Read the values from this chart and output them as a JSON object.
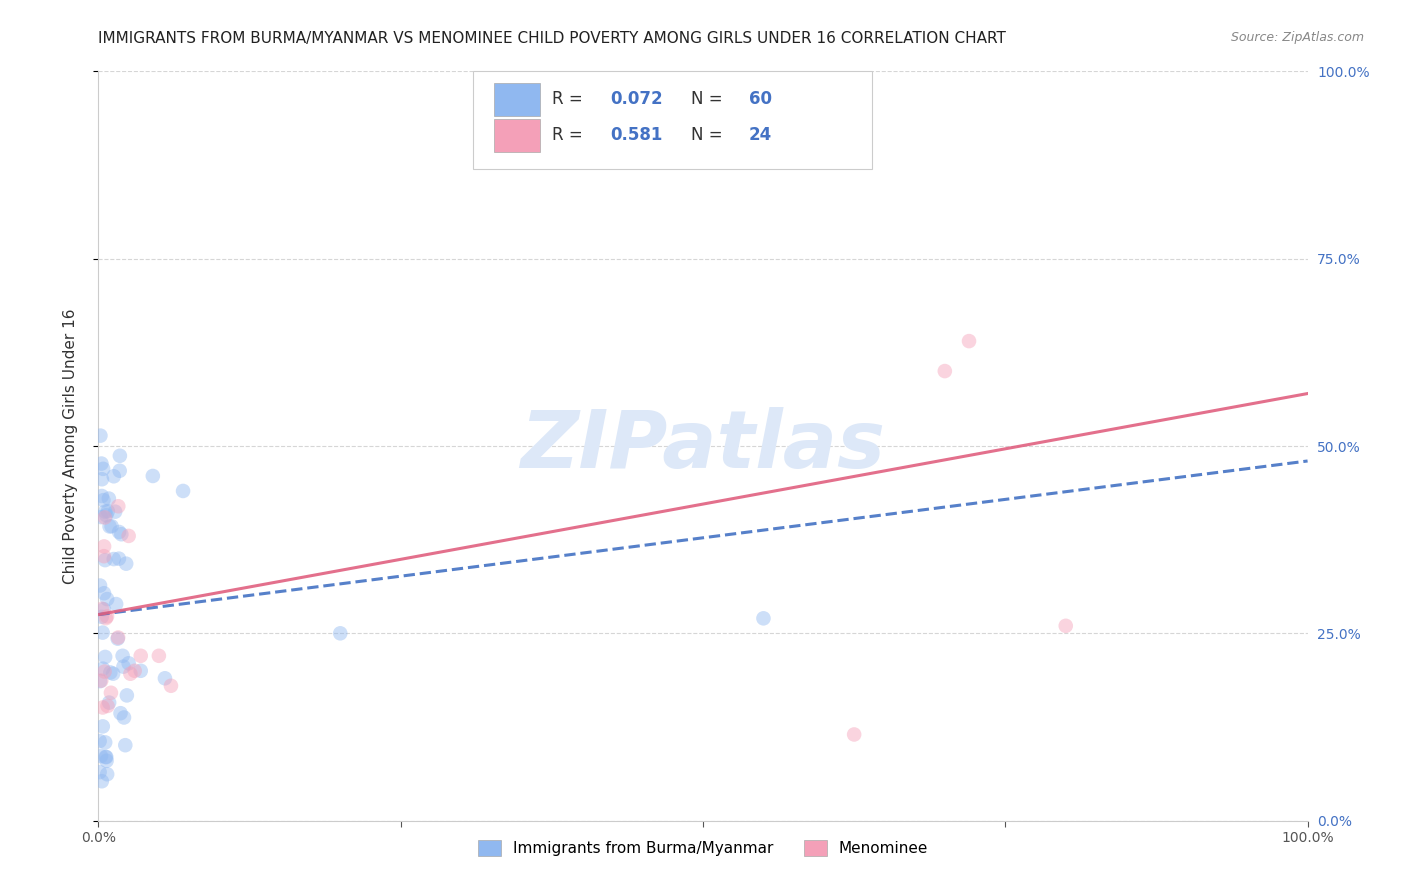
{
  "title": "IMMIGRANTS FROM BURMA/MYANMAR VS MENOMINEE CHILD POVERTY AMONG GIRLS UNDER 16 CORRELATION CHART",
  "source": "Source: ZipAtlas.com",
  "ylabel": "Child Poverty Among Girls Under 16",
  "xlim": [
    0,
    1.0
  ],
  "ylim": [
    0,
    1.0
  ],
  "xticklabels": [
    "0.0%",
    "",
    "",
    "",
    "100.0%"
  ],
  "ytick_positions": [
    0.0,
    0.25,
    0.5,
    0.75,
    1.0
  ],
  "ytick_labels_right": [
    "0.0%",
    "25.0%",
    "50.0%",
    "75.0%",
    "100.0%"
  ],
  "blue_color": "#90b8f0",
  "pink_color": "#f4a0b8",
  "blue_line_color": "#4472c4",
  "pink_line_color": "#e06080",
  "blue_line_start_y": 0.275,
  "blue_line_end_y": 0.48,
  "pink_line_start_y": 0.275,
  "pink_line_end_y": 0.57,
  "grid_color": "#cccccc",
  "background_color": "#ffffff",
  "title_fontsize": 11,
  "axis_label_fontsize": 11,
  "tick_fontsize": 10,
  "legend_fontsize": 11,
  "scatter_size": 110,
  "scatter_alpha": 0.45,
  "watermark": "ZIPatlas",
  "watermark_color": "#dde8f8"
}
